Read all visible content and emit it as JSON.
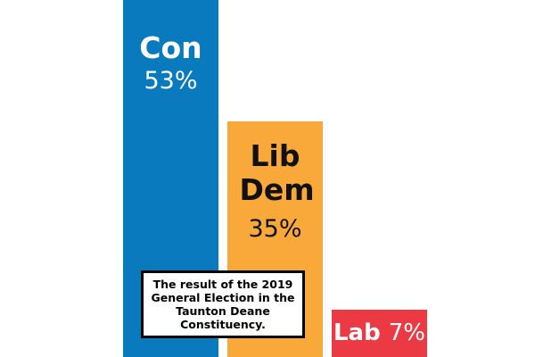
{
  "chart_data": {
    "type": "bar",
    "categories": [
      "Con",
      "Lib Dem",
      "Lab"
    ],
    "values": [
      53,
      35,
      7
    ],
    "value_labels": [
      "53%",
      "35%",
      "7%"
    ],
    "colors": [
      "#0a7abf",
      "#f9a83a",
      "#ec3a45"
    ],
    "ylim": [
      0,
      53
    ],
    "grid": false,
    "annotation": "The result of the 2019 General Election in the Taunton Deane Constituency."
  }
}
